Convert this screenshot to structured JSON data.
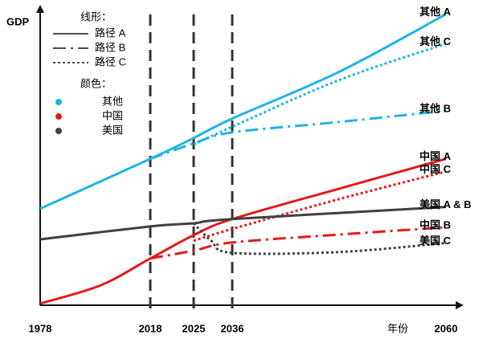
{
  "chart_data": {
    "type": "line",
    "y_label": "GDP",
    "x_label": "年份",
    "xlim": [
      1978,
      2060
    ],
    "xticks": [
      1978,
      2018,
      2025,
      2036,
      2060
    ],
    "ylim": [
      0,
      105
    ],
    "legend": {
      "style_title": "线形：",
      "styles": [
        {
          "label": "路径 A",
          "style": "solid"
        },
        {
          "label": "路径 B",
          "style": "dashdot"
        },
        {
          "label": "路径 C",
          "style": "dotted"
        }
      ],
      "color_title": "颜色：",
      "colors": [
        {
          "label": "其他",
          "color": "#1eb4e6"
        },
        {
          "label": "中国",
          "color": "#e41a1c"
        },
        {
          "label": "美国",
          "color": "#404040"
        }
      ]
    },
    "series": [
      {
        "name": "其他 A",
        "color": "#1eb4e6",
        "style": "solid",
        "x": [
          1978,
          2018,
          2025,
          2036,
          2048,
          2060
        ],
        "values": [
          34.3,
          52,
          59.4,
          66.3,
          82.9,
          103.4
        ]
      },
      {
        "name": "其他 C",
        "color": "#1eb4e6",
        "style": "dotted",
        "x": [
          2025,
          2036,
          2048,
          2060
        ],
        "values": [
          57.1,
          63.4,
          80,
          92.9
        ]
      },
      {
        "name": "其他 B",
        "color": "#1eb4e6",
        "style": "dashdot",
        "x": [
          2018,
          2025,
          2036,
          2048,
          2060
        ],
        "values": [
          52,
          57.5,
          61.4,
          65.1,
          69.1
        ]
      },
      {
        "name": "中国 A",
        "color": "#e41a1c",
        "style": "solid",
        "x": [
          1978,
          2000,
          2018,
          2025,
          2036,
          2048,
          2060
        ],
        "values": [
          0.6,
          7.1,
          16.6,
          24.9,
          30.6,
          41.4,
          52
        ]
      },
      {
        "name": "中国 C",
        "color": "#e41a1c",
        "style": "dotted",
        "x": [
          2025,
          2036,
          2048,
          2060
        ],
        "values": [
          22.9,
          27.1,
          37.7,
          47.5
        ]
      },
      {
        "name": "美国 A & B",
        "color": "#404040",
        "style": "solid",
        "x": [
          1978,
          2018,
          2025,
          2036,
          2060
        ],
        "values": [
          23.4,
          28,
          29.1,
          30.6,
          34.9
        ]
      },
      {
        "name": "中国 B",
        "color": "#e41a1c",
        "style": "dashdot",
        "x": [
          2018,
          2025,
          2036,
          2048,
          2060
        ],
        "values": [
          16.6,
          19.4,
          22.3,
          25.1,
          27.7
        ]
      },
      {
        "name": "美国 C",
        "color": "#404040",
        "style": "dotted",
        "x": [
          2025,
          2030,
          2036,
          2048,
          2060
        ],
        "values": [
          29.1,
          22.9,
          18.6,
          18.9,
          22.1
        ]
      }
    ]
  }
}
